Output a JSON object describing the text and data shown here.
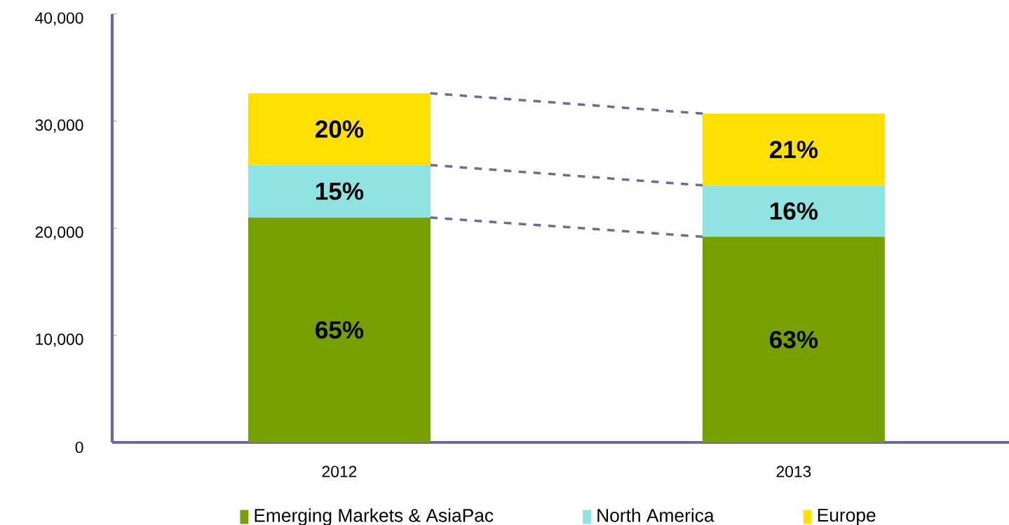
{
  "chart_data": {
    "type": "bar",
    "stacked": true,
    "categories": [
      "2012",
      "2013"
    ],
    "series": [
      {
        "name": "Emerging Markets & AsiaPac",
        "color": "#76a000",
        "values": [
          21000,
          19200
        ]
      },
      {
        "name": "North America",
        "color": "#8fe3e3",
        "values": [
          4900,
          4800
        ]
      },
      {
        "name": "Europe",
        "color": "#ffe000",
        "values": [
          6700,
          6700
        ]
      }
    ],
    "annotations": [
      "65%",
      "63%",
      "15%",
      "16%",
      "20%",
      "21%"
    ],
    "ylim": [
      0,
      40000
    ],
    "yticks": [
      0,
      {
        "value": 10000,
        "label": "10,000"
      },
      {
        "value": 20000,
        "label": "20,000"
      },
      {
        "value": 30000,
        "label": "30,000"
      },
      {
        "value": 40000,
        "label": "40,000"
      }
    ],
    "grid": false,
    "legend": "bottom"
  }
}
